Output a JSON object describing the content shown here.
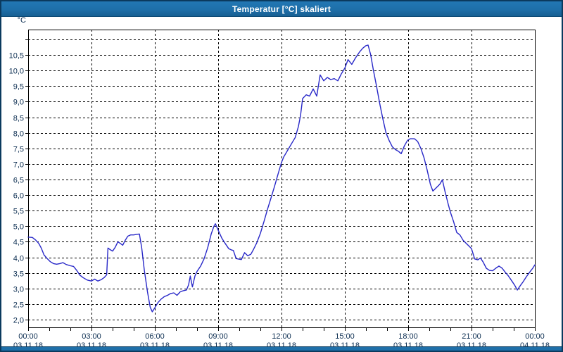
{
  "window": {
    "title": "Temperatur [°C] skaliert"
  },
  "colors": {
    "titlebar": "#1e6fa9",
    "window_border": "#0b3a5e",
    "label_text": "#0a2c50",
    "grid": "#000000",
    "line": "#2828c8",
    "plot_background": "#ffffff"
  },
  "chart_data": {
    "type": "line",
    "title": "Temperatur [°C] skaliert",
    "y_unit": "°C",
    "y_min": 2.0,
    "y_max": 11.0,
    "y_gridline_step": 0.5,
    "y_tick_labels": [
      "2,0",
      "2,5",
      "3,0",
      "3,5",
      "4,0",
      "4,5",
      "5,0",
      "5,5",
      "6,0",
      "6,5",
      "7,0",
      "7,5",
      "8,0",
      "8,5",
      "9,0",
      "9,5",
      "10,0",
      "10,5"
    ],
    "grid": "dashed",
    "legend": "none",
    "x_axis": {
      "hours_span": 24,
      "minor_tick_hours": 1,
      "major_tick_hours": 3,
      "ticks": [
        {
          "time": "00:00",
          "date": "03.11.18"
        },
        {
          "time": "03:00",
          "date": "03.11.18"
        },
        {
          "time": "06:00",
          "date": "03.11.18"
        },
        {
          "time": "09:00",
          "date": "03.11.18"
        },
        {
          "time": "12:00",
          "date": "03.11.18"
        },
        {
          "time": "15:00",
          "date": "03.11.18"
        },
        {
          "time": "18:00",
          "date": "03.11.18"
        },
        {
          "time": "21:00",
          "date": "03.11.18"
        },
        {
          "time": "00:00",
          "date": "04.11.18"
        }
      ]
    },
    "series": [
      {
        "name": "Temperatur",
        "color": "#2828c8",
        "points": [
          [
            0.0,
            4.65
          ],
          [
            0.2,
            4.64
          ],
          [
            0.35,
            4.56
          ],
          [
            0.5,
            4.45
          ],
          [
            0.62,
            4.3
          ],
          [
            0.75,
            4.08
          ],
          [
            0.9,
            3.96
          ],
          [
            1.05,
            3.86
          ],
          [
            1.2,
            3.8
          ],
          [
            1.35,
            3.78
          ],
          [
            1.5,
            3.8
          ],
          [
            1.65,
            3.83
          ],
          [
            1.8,
            3.77
          ],
          [
            2.0,
            3.73
          ],
          [
            2.15,
            3.71
          ],
          [
            2.3,
            3.58
          ],
          [
            2.45,
            3.43
          ],
          [
            2.6,
            3.35
          ],
          [
            2.8,
            3.27
          ],
          [
            3.0,
            3.24
          ],
          [
            3.15,
            3.3
          ],
          [
            3.3,
            3.24
          ],
          [
            3.45,
            3.28
          ],
          [
            3.6,
            3.35
          ],
          [
            3.72,
            3.44
          ],
          [
            3.78,
            4.3
          ],
          [
            3.9,
            4.24
          ],
          [
            4.0,
            4.2
          ],
          [
            4.12,
            4.32
          ],
          [
            4.25,
            4.5
          ],
          [
            4.38,
            4.44
          ],
          [
            4.48,
            4.39
          ],
          [
            4.6,
            4.55
          ],
          [
            4.72,
            4.68
          ],
          [
            4.85,
            4.72
          ],
          [
            5.0,
            4.72
          ],
          [
            5.15,
            4.74
          ],
          [
            5.27,
            4.75
          ],
          [
            5.38,
            4.3
          ],
          [
            5.5,
            3.6
          ],
          [
            5.65,
            2.9
          ],
          [
            5.78,
            2.4
          ],
          [
            5.88,
            2.25
          ],
          [
            6.0,
            2.38
          ],
          [
            6.15,
            2.55
          ],
          [
            6.3,
            2.66
          ],
          [
            6.45,
            2.74
          ],
          [
            6.6,
            2.78
          ],
          [
            6.75,
            2.84
          ],
          [
            6.9,
            2.86
          ],
          [
            7.05,
            2.78
          ],
          [
            7.2,
            2.89
          ],
          [
            7.35,
            2.93
          ],
          [
            7.5,
            2.95
          ],
          [
            7.6,
            3.12
          ],
          [
            7.68,
            3.4
          ],
          [
            7.78,
            3.05
          ],
          [
            7.9,
            3.4
          ],
          [
            8.0,
            3.55
          ],
          [
            8.17,
            3.72
          ],
          [
            8.33,
            3.95
          ],
          [
            8.5,
            4.3
          ],
          [
            8.67,
            4.75
          ],
          [
            8.8,
            5.0
          ],
          [
            8.87,
            5.08
          ],
          [
            8.95,
            4.95
          ],
          [
            9.05,
            4.8
          ],
          [
            9.17,
            4.62
          ],
          [
            9.33,
            4.45
          ],
          [
            9.5,
            4.28
          ],
          [
            9.62,
            4.24
          ],
          [
            9.72,
            4.22
          ],
          [
            9.85,
            3.96
          ],
          [
            10.0,
            3.94
          ],
          [
            10.1,
            3.93
          ],
          [
            10.25,
            4.15
          ],
          [
            10.4,
            4.05
          ],
          [
            10.55,
            4.1
          ],
          [
            10.67,
            4.25
          ],
          [
            10.83,
            4.47
          ],
          [
            11.0,
            4.77
          ],
          [
            11.17,
            5.15
          ],
          [
            11.33,
            5.53
          ],
          [
            11.5,
            5.9
          ],
          [
            11.67,
            6.28
          ],
          [
            11.83,
            6.66
          ],
          [
            12.0,
            7.05
          ],
          [
            12.1,
            7.22
          ],
          [
            12.3,
            7.45
          ],
          [
            12.5,
            7.68
          ],
          [
            12.65,
            7.85
          ],
          [
            12.8,
            8.2
          ],
          [
            12.9,
            8.55
          ],
          [
            13.0,
            9.1
          ],
          [
            13.17,
            9.22
          ],
          [
            13.33,
            9.18
          ],
          [
            13.5,
            9.41
          ],
          [
            13.67,
            9.18
          ],
          [
            13.83,
            9.86
          ],
          [
            14.0,
            9.67
          ],
          [
            14.17,
            9.78
          ],
          [
            14.33,
            9.71
          ],
          [
            14.5,
            9.74
          ],
          [
            14.67,
            9.67
          ],
          [
            14.83,
            9.89
          ],
          [
            15.0,
            10.08
          ],
          [
            15.15,
            10.35
          ],
          [
            15.33,
            10.2
          ],
          [
            15.5,
            10.4
          ],
          [
            15.7,
            10.6
          ],
          [
            15.85,
            10.72
          ],
          [
            16.0,
            10.8
          ],
          [
            16.1,
            10.82
          ],
          [
            16.22,
            10.52
          ],
          [
            16.35,
            10.02
          ],
          [
            16.5,
            9.5
          ],
          [
            16.65,
            8.95
          ],
          [
            16.8,
            8.45
          ],
          [
            16.95,
            8.0
          ],
          [
            17.1,
            7.75
          ],
          [
            17.25,
            7.55
          ],
          [
            17.4,
            7.46
          ],
          [
            17.55,
            7.4
          ],
          [
            17.67,
            7.33
          ],
          [
            17.82,
            7.58
          ],
          [
            17.97,
            7.76
          ],
          [
            18.1,
            7.81
          ],
          [
            18.3,
            7.81
          ],
          [
            18.45,
            7.72
          ],
          [
            18.6,
            7.5
          ],
          [
            18.75,
            7.2
          ],
          [
            18.9,
            6.8
          ],
          [
            19.05,
            6.35
          ],
          [
            19.17,
            6.13
          ],
          [
            19.35,
            6.25
          ],
          [
            19.5,
            6.35
          ],
          [
            19.62,
            6.49
          ],
          [
            19.75,
            6.1
          ],
          [
            19.9,
            5.7
          ],
          [
            20.0,
            5.45
          ],
          [
            20.15,
            5.15
          ],
          [
            20.3,
            4.8
          ],
          [
            20.45,
            4.72
          ],
          [
            20.6,
            4.55
          ],
          [
            20.75,
            4.45
          ],
          [
            20.9,
            4.35
          ],
          [
            21.0,
            4.28
          ],
          [
            21.15,
            3.95
          ],
          [
            21.3,
            3.92
          ],
          [
            21.42,
            3.98
          ],
          [
            21.55,
            3.85
          ],
          [
            21.7,
            3.65
          ],
          [
            21.85,
            3.58
          ],
          [
            22.0,
            3.57
          ],
          [
            22.15,
            3.65
          ],
          [
            22.3,
            3.72
          ],
          [
            22.45,
            3.65
          ],
          [
            22.6,
            3.52
          ],
          [
            22.75,
            3.4
          ],
          [
            22.9,
            3.25
          ],
          [
            23.05,
            3.1
          ],
          [
            23.17,
            2.95
          ],
          [
            23.3,
            3.08
          ],
          [
            23.45,
            3.22
          ],
          [
            23.6,
            3.38
          ],
          [
            23.75,
            3.52
          ],
          [
            23.9,
            3.65
          ],
          [
            24.0,
            3.76
          ]
        ]
      }
    ]
  }
}
